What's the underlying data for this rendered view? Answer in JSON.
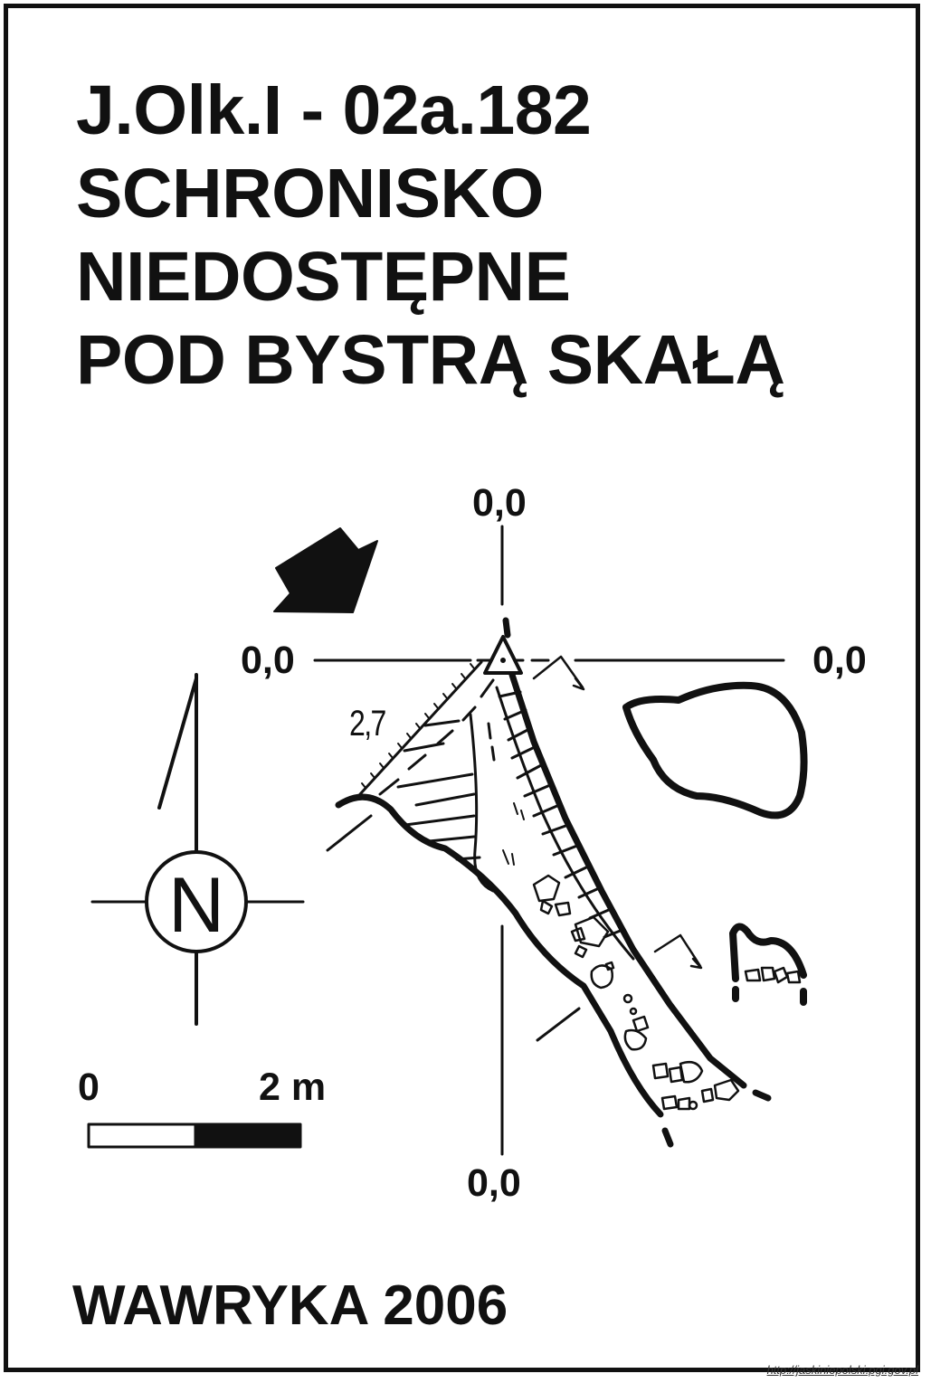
{
  "title_lines": {
    "line1": "J.Olk.I - 02a.182",
    "line2": "SCHRONISKO",
    "line3": "NIEDOSTĘPNE",
    "line4": "POD BYSTRĄ SKAŁĄ"
  },
  "section_labels": {
    "top": "0,0",
    "left": "0,0",
    "right": "0,0",
    "bottom": "0,0"
  },
  "depth_label": "2,7",
  "north_symbol": "N",
  "scale_bar": {
    "start": "0",
    "end": "2 m",
    "segments": [
      "white",
      "black"
    ]
  },
  "author_line": "WAWRYKA 2006",
  "source_text": "http://jaskiniepolski.pgi.gov.pl",
  "icons": [
    "entrance-arrow-icon",
    "north-compass-icon",
    "survey-station-icon"
  ],
  "colors": {
    "ink": "#111111",
    "paper": "#ffffff"
  }
}
